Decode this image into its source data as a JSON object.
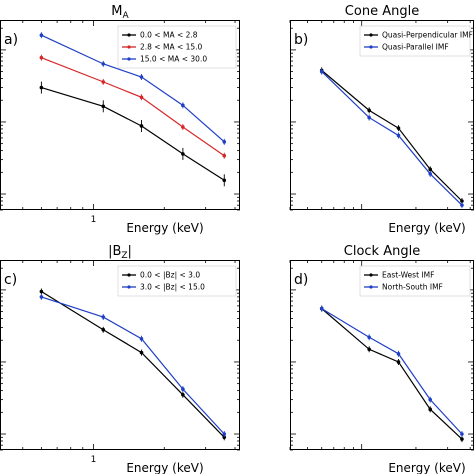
{
  "chart_data": [
    {
      "type": "line",
      "panel_label": "a)",
      "title": "M",
      "title_sub": "A",
      "xlabel": "Energy (keV)",
      "x_tick_labels": [
        "1"
      ],
      "x": [
        0.6,
        1.1,
        1.6,
        2.4,
        3.6
      ],
      "log_x": true,
      "log_y": true,
      "legend_position": "top-right",
      "series": [
        {
          "name": "0.0 < MA < 2.8",
          "color": "#000000",
          "values": [
            0.3,
            0.165,
            0.088,
            0.036,
            0.0155
          ]
        },
        {
          "name": "2.8 < MA < 15.0",
          "color": "#d62728",
          "values": [
            0.78,
            0.36,
            0.22,
            0.085,
            0.034
          ]
        },
        {
          "name": "15.0 < MA < 30.0",
          "color": "#1f3fc6",
          "values": [
            1.6,
            0.64,
            0.42,
            0.17,
            0.053
          ]
        }
      ]
    },
    {
      "type": "line",
      "panel_label": "b)",
      "title": "Cone Angle",
      "title_sub": "",
      "xlabel": "Energy (keV)",
      "x_tick_labels": [],
      "x": [
        0.6,
        1.1,
        1.6,
        2.4,
        3.6
      ],
      "log_x": true,
      "log_y": true,
      "legend_position": "top-right",
      "series": [
        {
          "name": "Quasi-Perpendicular IMF",
          "color": "#000000",
          "values": [
            0.52,
            0.145,
            0.082,
            0.022,
            0.008
          ]
        },
        {
          "name": "Quasi-Parallel IMF",
          "color": "#1f3fc6",
          "values": [
            0.5,
            0.115,
            0.065,
            0.019,
            0.007
          ]
        }
      ]
    },
    {
      "type": "line",
      "panel_label": "c)",
      "title": "|B",
      "title_sub": "Z",
      "title_suffix": "|",
      "xlabel": "Energy (keV)",
      "x_tick_labels": [
        "1"
      ],
      "x": [
        0.6,
        1.1,
        1.6,
        2.4,
        3.6
      ],
      "log_x": true,
      "log_y": true,
      "legend_position": "top-right",
      "series": [
        {
          "name": "0.0 < |Bz| < 3.0",
          "color": "#000000",
          "values": [
            0.95,
            0.28,
            0.135,
            0.035,
            0.009
          ]
        },
        {
          "name": "3.0 < |Bz| < 15.0",
          "color": "#1f3fc6",
          "values": [
            0.8,
            0.42,
            0.21,
            0.042,
            0.01
          ]
        }
      ]
    },
    {
      "type": "line",
      "panel_label": "d)",
      "title": "Clock Angle",
      "title_sub": "",
      "xlabel": "Energy (keV)",
      "x_tick_labels": [],
      "x": [
        0.6,
        1.1,
        1.6,
        2.4,
        3.6
      ],
      "log_x": true,
      "log_y": true,
      "legend_position": "top-right",
      "series": [
        {
          "name": "East-West IMF",
          "color": "#000000",
          "values": [
            0.55,
            0.15,
            0.1,
            0.022,
            0.0085
          ]
        },
        {
          "name": "North-South IMF",
          "color": "#1f3fc6",
          "values": [
            0.55,
            0.22,
            0.13,
            0.03,
            0.01
          ]
        }
      ]
    }
  ]
}
